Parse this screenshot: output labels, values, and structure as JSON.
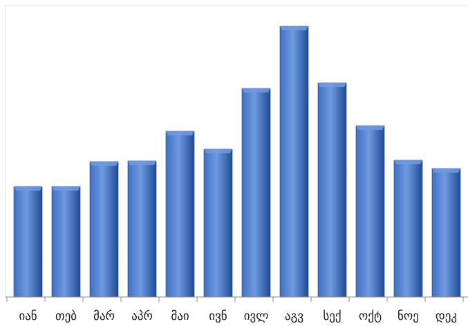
{
  "chart_data": {
    "type": "bar",
    "categories": [
      "იან",
      "თებ",
      "მარ",
      "აპრ",
      "მაი",
      "ივნ",
      "ივლ",
      "აგვ",
      "სექ",
      "ოქტ",
      "ნოე",
      "დეკ"
    ],
    "values": [
      160,
      160,
      196,
      197,
      240,
      214,
      302,
      392,
      310,
      248,
      198,
      186
    ],
    "ylim": [
      0,
      400
    ],
    "grid": false,
    "legend": "none",
    "colors": {
      "bar_top": "#6f9ae0",
      "bar_mid": "#3f70c4",
      "bar_bottom": "#1f4b96",
      "bar_edge": "#1e3f7a",
      "frame": "#dddddd",
      "axis": "#888888"
    }
  }
}
